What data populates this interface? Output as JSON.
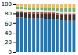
{
  "chart_data": {
    "type": "bar",
    "stacked": true,
    "grid": false,
    "tick_labels": "y",
    "categories": [
      null,
      null,
      null,
      null,
      null,
      null,
      null,
      null,
      null,
      null,
      null,
      null,
      null,
      null,
      null
    ],
    "series": [
      {
        "color": "#1f77b4",
        "values": [
          72,
          72,
          71,
          70,
          70,
          70,
          70,
          69,
          68,
          68,
          67,
          66,
          65,
          65,
          65
        ]
      },
      {
        "color": "#333333",
        "values": [
          10,
          10,
          10,
          10,
          10,
          10,
          10,
          10,
          11,
          11,
          11,
          11,
          12,
          12,
          12
        ]
      },
      {
        "color": "#c0392b",
        "values": [
          3,
          3,
          3,
          3,
          3,
          3,
          3,
          3,
          3,
          3,
          3,
          3,
          3,
          3,
          3
        ]
      },
      {
        "color": "#e8e8e8",
        "values": [
          4,
          4,
          4,
          4,
          4,
          4,
          4,
          4,
          4,
          4,
          4,
          4,
          4,
          4,
          4
        ]
      },
      {
        "color": "#6ab187",
        "values": [
          5,
          5,
          5,
          6,
          6,
          6,
          6,
          7,
          7,
          7,
          7,
          8,
          8,
          8,
          8
        ]
      },
      {
        "color": "#f0c040",
        "values": [
          6,
          6,
          7,
          7,
          7,
          7,
          7,
          7,
          7,
          7,
          8,
          8,
          8,
          8,
          8
        ]
      }
    ],
    "ylim": [
      0,
      100
    ],
    "yticks": [
      0,
      20,
      40,
      60,
      80,
      100
    ]
  }
}
